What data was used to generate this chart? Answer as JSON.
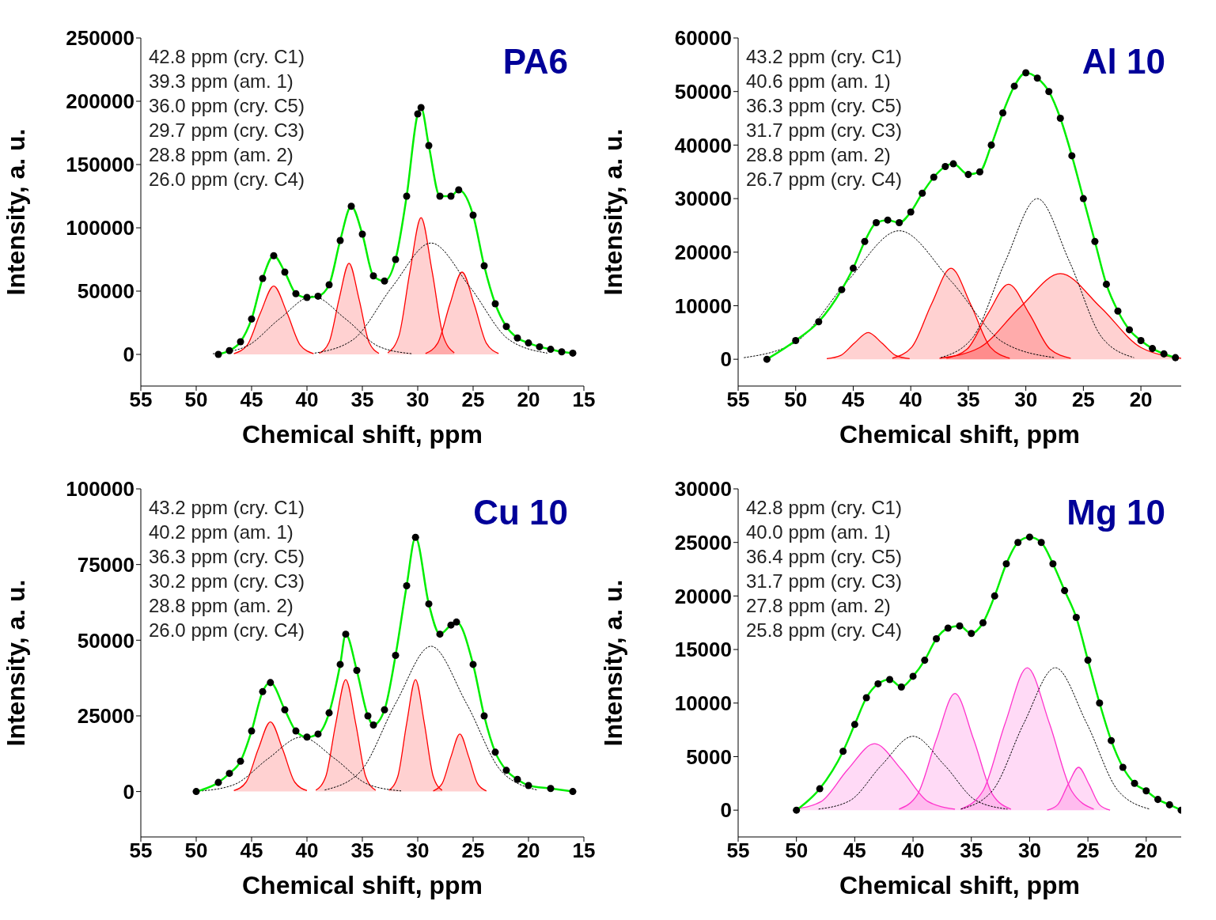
{
  "chart_data": [
    {
      "type": "line",
      "title": "PA6",
      "xlabel": "Chemical shift, ppm",
      "ylabel": "Intensity, a. u.",
      "xlim": [
        55,
        15
      ],
      "xticks": [
        55,
        50,
        45,
        40,
        35,
        30,
        25,
        20,
        15
      ],
      "ylim": [
        -25000,
        250000
      ],
      "yticks": [
        0,
        50000,
        100000,
        150000,
        200000,
        250000
      ],
      "annotations": [
        "42.8 ppm (cry. C1)",
        "39.3 ppm (am. 1)",
        "36.0 ppm (cry. C5)",
        "29.7 ppm (cry. C3)",
        "28.8 ppm (am. 2)",
        "26.0 ppm (cry. C4)"
      ],
      "series": [
        {
          "type": "area",
          "color": "#ff0000",
          "x": [
            46.6,
            45.4,
            44.2,
            43.0,
            41.8,
            40.6,
            39.4
          ],
          "values": [
            600,
            7300,
            32800,
            54000,
            32800,
            7300,
            600
          ]
        },
        {
          "type": "area",
          "color": "#ff0000",
          "x": [
            38.9,
            38.0,
            37.1,
            36.2,
            35.3,
            34.4,
            33.5
          ],
          "values": [
            800,
            9700,
            43700,
            72000,
            43700,
            9700,
            800
          ]
        },
        {
          "type": "area",
          "color": "#ff0000",
          "x": [
            32.7,
            31.7,
            30.7,
            29.7,
            28.7,
            27.7,
            26.7
          ],
          "values": [
            1200,
            14600,
            65600,
            108000,
            65600,
            14600,
            1200
          ]
        },
        {
          "type": "area",
          "color": "#ff0000",
          "x": [
            29.3,
            28.2,
            27.1,
            26.0,
            24.9,
            23.8,
            22.7
          ],
          "values": [
            700,
            8800,
            39500,
            65000,
            39500,
            8800,
            700
          ]
        },
        {
          "type": "line",
          "color": "#000000",
          "line_style": "dashed",
          "x": [
            48.5,
            45.5,
            42.5,
            39.5,
            36.5,
            33.5,
            30.5
          ],
          "values": [
            500,
            6200,
            27900,
            46000,
            27900,
            6200,
            500
          ]
        },
        {
          "type": "line",
          "color": "#000000",
          "line_style": "dashed",
          "x": [
            39.3,
            35.8,
            32.3,
            28.8,
            25.3,
            21.8,
            18.3
          ],
          "values": [
            1000,
            11900,
            53400,
            88000,
            53400,
            11900,
            1000
          ]
        },
        {
          "type": "scatter",
          "color": "#000000",
          "marker": "circle",
          "x": [
            48,
            47,
            46,
            45,
            44,
            43,
            42,
            41,
            40,
            39,
            38,
            37,
            36,
            35,
            34,
            33,
            32,
            31,
            30,
            29.7,
            29,
            28,
            27,
            26.3,
            25,
            24,
            23,
            22,
            21,
            20,
            19,
            18,
            17,
            16
          ],
          "values": [
            0,
            3000,
            10000,
            28000,
            60000,
            78000,
            65000,
            48000,
            45000,
            46000,
            55000,
            90000,
            117000,
            95000,
            62000,
            58000,
            75000,
            125000,
            190000,
            195000,
            165000,
            125000,
            125000,
            130000,
            110000,
            70000,
            40000,
            22000,
            13000,
            9000,
            6000,
            4000,
            2000,
            1000
          ]
        },
        {
          "type": "line",
          "color": "#00ee00",
          "marker": "none",
          "x": [
            48,
            47,
            46,
            45,
            44,
            43,
            42,
            41,
            40,
            39,
            38,
            37,
            36,
            35,
            34,
            33,
            32,
            31,
            30,
            29.7,
            29,
            28,
            27,
            26.3,
            25,
            24,
            23,
            22,
            21,
            20,
            19,
            18,
            17,
            16
          ],
          "values": [
            0,
            3000,
            10000,
            28000,
            60000,
            78000,
            65000,
            48000,
            45000,
            46000,
            55000,
            90000,
            117000,
            95000,
            62000,
            58000,
            75000,
            125000,
            190000,
            195000,
            165000,
            125000,
            125000,
            130000,
            110000,
            70000,
            40000,
            22000,
            13000,
            9000,
            6000,
            4000,
            2000,
            1000
          ]
        }
      ]
    },
    {
      "type": "line",
      "title": "Al 10",
      "xlabel": "Chemical shift, ppm",
      "ylabel": "Intensity, a. u.",
      "xlim": [
        55,
        16.5
      ],
      "xticks": [
        55,
        50,
        45,
        40,
        35,
        30,
        25,
        20
      ],
      "ylim": [
        -5000,
        60000
      ],
      "yticks": [
        0,
        10000,
        20000,
        30000,
        40000,
        50000,
        60000
      ],
      "annotations": [
        "43.2 ppm (cry. C1)",
        "40.6 ppm (am. 1)",
        "36.3 ppm (cry. C5)",
        "31.7 ppm (cry. C3)",
        "28.8 ppm (am. 2)",
        "26.7 ppm (cry. C4)"
      ],
      "series": [
        {
          "type": "area",
          "color": "#ff0000",
          "x": [
            47.3,
            46.1,
            44.9,
            43.7,
            42.5,
            41.3,
            40.1
          ],
          "values": [
            100,
            700,
            3000,
            5000,
            3000,
            700,
            100
          ]
        },
        {
          "type": "area",
          "color": "#ff0000",
          "x": [
            41.6,
            39.9,
            38.2,
            36.5,
            34.8,
            33.1,
            31.4
          ],
          "values": [
            200,
            2300,
            10300,
            17000,
            10300,
            2300,
            200
          ]
        },
        {
          "type": "area",
          "color": "#ff0000",
          "x": [
            36.9,
            35.1,
            33.3,
            31.5,
            29.7,
            27.9,
            26.1
          ],
          "values": [
            200,
            1900,
            8500,
            14000,
            8500,
            1900,
            200
          ]
        },
        {
          "type": "area",
          "color": "#ff0000",
          "x": [
            37.5,
            34,
            30.5,
            27,
            23.5,
            20,
            16.5
          ],
          "values": [
            200,
            2200,
            9700,
            16000,
            9700,
            2200,
            200
          ]
        },
        {
          "type": "line",
          "color": "#000000",
          "line_style": "dashed",
          "x": [
            54.5,
            50,
            45.5,
            41,
            36.5,
            32,
            27.5
          ],
          "values": [
            300,
            3200,
            14600,
            24000,
            14600,
            3200,
            300
          ]
        },
        {
          "type": "line",
          "color": "#000000",
          "line_style": "dashed",
          "x": [
            37.4,
            34.6,
            31.8,
            29,
            26.2,
            23.4,
            20.6
          ],
          "values": [
            300,
            4100,
            18200,
            30000,
            18200,
            4100,
            300
          ]
        },
        {
          "type": "scatter",
          "color": "#000000",
          "marker": "circle",
          "x": [
            52.5,
            50,
            48,
            46,
            45,
            44,
            43,
            42,
            41,
            40,
            39,
            38,
            37,
            36.3,
            35,
            34,
            33,
            32,
            31,
            30,
            29,
            28,
            27,
            26,
            25,
            24,
            23,
            22,
            21,
            20,
            19,
            18,
            17
          ],
          "values": [
            0,
            3500,
            7000,
            13000,
            17000,
            22000,
            25500,
            26000,
            25500,
            27500,
            31000,
            34000,
            36000,
            36500,
            34500,
            35000,
            40000,
            46000,
            51000,
            53500,
            52500,
            50000,
            45000,
            38000,
            30000,
            22000,
            14000,
            9000,
            5500,
            3500,
            2000,
            1000,
            300
          ]
        },
        {
          "type": "line",
          "color": "#00ee00",
          "marker": "none",
          "x": [
            52.5,
            50,
            48,
            46,
            45,
            44,
            43,
            42,
            41,
            40,
            39,
            38,
            37,
            36.3,
            35,
            34,
            33,
            32,
            31,
            30,
            29,
            28,
            27,
            26,
            25,
            24,
            23,
            22,
            21,
            20,
            19,
            18,
            17
          ],
          "values": [
            0,
            3500,
            7000,
            13000,
            17000,
            22000,
            25500,
            26000,
            25500,
            27500,
            31000,
            34000,
            36000,
            36500,
            34500,
            35000,
            40000,
            46000,
            51000,
            53500,
            52500,
            50000,
            45000,
            38000,
            30000,
            22000,
            14000,
            9000,
            5500,
            3500,
            2000,
            1000,
            300
          ]
        }
      ]
    },
    {
      "type": "line",
      "title": "Cu 10",
      "xlabel": "Chemical shift, ppm",
      "ylabel": "Intensity, a. u.",
      "xlim": [
        55,
        15
      ],
      "xticks": [
        55,
        50,
        45,
        40,
        35,
        30,
        25,
        20,
        15
      ],
      "ylim": [
        -15000,
        100000
      ],
      "yticks": [
        0,
        25000,
        50000,
        75000,
        100000
      ],
      "annotations": [
        "43.2 ppm (cry. C1)",
        "40.2 ppm (am. 1)",
        "36.3 ppm (cry. C5)",
        "30.2 ppm (cry. C3)",
        "28.8 ppm (am. 2)",
        "26.0 ppm (cry. C4)"
      ],
      "series": [
        {
          "type": "area",
          "color": "#ff0000",
          "x": [
            46.6,
            45.5,
            44.4,
            43.3,
            42.2,
            41.1,
            40
          ],
          "values": [
            300,
            3100,
            14000,
            23000,
            14000,
            3100,
            300
          ]
        },
        {
          "type": "area",
          "color": "#ff0000",
          "x": [
            39.2,
            38.3,
            37.4,
            36.5,
            35.6,
            34.7,
            33.8
          ],
          "values": [
            400,
            5000,
            22500,
            37000,
            22500,
            5000,
            400
          ]
        },
        {
          "type": "area",
          "color": "#ff0000",
          "x": [
            32.6,
            31.8,
            31,
            30.2,
            29.4,
            28.6,
            27.8
          ],
          "values": [
            400,
            5000,
            22500,
            37000,
            22500,
            5000,
            400
          ]
        },
        {
          "type": "area",
          "color": "#ff0000",
          "x": [
            28.6,
            27.8,
            27,
            26.2,
            25.4,
            24.6,
            23.8
          ],
          "values": [
            200,
            2600,
            11500,
            19000,
            11500,
            2600,
            200
          ]
        },
        {
          "type": "line",
          "color": "#000000",
          "line_style": "dashed",
          "x": [
            49.5,
            46.5,
            43.5,
            40.5,
            37.5,
            34.5,
            31.5
          ],
          "values": [
            200,
            2400,
            10900,
            18000,
            10900,
            2400,
            200
          ]
        },
        {
          "type": "line",
          "color": "#000000",
          "line_style": "dashed",
          "x": [
            38.4,
            35.2,
            32,
            28.8,
            25.6,
            22.4,
            19.2
          ],
          "values": [
            500,
            6500,
            29100,
            48000,
            29100,
            6500,
            500
          ]
        },
        {
          "type": "scatter",
          "color": "#000000",
          "marker": "circle",
          "x": [
            50,
            48,
            47,
            46,
            45,
            44,
            43.3,
            42,
            41,
            40,
            39,
            38,
            37,
            36.5,
            35.5,
            34.5,
            34,
            33,
            32,
            31,
            30.2,
            29,
            28,
            27,
            26.5,
            25,
            24,
            23,
            22,
            21,
            20,
            18,
            16
          ],
          "values": [
            0,
            3000,
            6000,
            10000,
            20000,
            33000,
            36000,
            27000,
            20000,
            18000,
            19000,
            26000,
            42000,
            52000,
            40000,
            25000,
            22000,
            27000,
            45000,
            68000,
            84000,
            62000,
            52000,
            55000,
            56000,
            42000,
            25000,
            13000,
            7000,
            4000,
            2000,
            1000,
            0
          ]
        },
        {
          "type": "line",
          "color": "#00ee00",
          "marker": "none",
          "x": [
            50,
            48,
            47,
            46,
            45,
            44,
            43.3,
            42,
            41,
            40,
            39,
            38,
            37,
            36.5,
            35.5,
            34.5,
            34,
            33,
            32,
            31,
            30.2,
            29,
            28,
            27,
            26.5,
            25,
            24,
            23,
            22,
            21,
            20,
            18,
            16
          ],
          "values": [
            0,
            3000,
            6000,
            10000,
            20000,
            33000,
            36000,
            27000,
            20000,
            18000,
            19000,
            26000,
            42000,
            52000,
            40000,
            25000,
            22000,
            27000,
            45000,
            68000,
            84000,
            62000,
            52000,
            55000,
            56000,
            42000,
            25000,
            13000,
            7000,
            4000,
            2000,
            1000,
            0
          ]
        }
      ]
    },
    {
      "type": "line",
      "title": "Mg 10",
      "xlabel": "Chemical shift, ppm",
      "ylabel": "Intensity, a. u.",
      "xlim": [
        55,
        17
      ],
      "xticks": [
        55,
        50,
        45,
        40,
        35,
        30,
        25,
        20
      ],
      "ylim": [
        -2500,
        30000
      ],
      "yticks": [
        0,
        5000,
        10000,
        15000,
        20000,
        25000,
        30000
      ],
      "annotations": [
        "42.8 ppm (cry. C1)",
        "40.0 ppm (am. 1)",
        "36.4 ppm (cry. C5)",
        "31.7 ppm (cry. C3)",
        "27.8 ppm (am. 2)",
        "25.8 ppm (cry. C4)"
      ],
      "series": [
        {
          "type": "area",
          "color": "#ff33cc",
          "x": [
            50.2,
            47.9,
            45.6,
            43.3,
            41,
            38.7,
            36.4
          ],
          "values": [
            100,
            800,
            3800,
            6200,
            3800,
            800,
            100
          ]
        },
        {
          "type": "area",
          "color": "#ff33cc",
          "x": [
            41.2,
            39.6,
            38,
            36.4,
            34.8,
            33.2,
            31.6
          ],
          "values": [
            100,
            1500,
            6600,
            10900,
            6600,
            1500,
            100
          ]
        },
        {
          "type": "area",
          "color": "#ff33cc",
          "x": [
            35.9,
            34,
            32.1,
            30.2,
            28.3,
            26.4,
            24.5
          ],
          "values": [
            100,
            1800,
            8100,
            13300,
            8100,
            1800,
            100
          ]
        },
        {
          "type": "area",
          "color": "#ff33cc",
          "x": [
            28.5,
            27.6,
            26.7,
            25.8,
            24.9,
            24,
            23.1
          ],
          "values": [
            0,
            500,
            2400,
            4000,
            2400,
            500,
            0
          ]
        },
        {
          "type": "line",
          "color": "#000000",
          "line_style": "dashed",
          "x": [
            48.1,
            45.4,
            42.7,
            40,
            37.3,
            34.6,
            31.9
          ],
          "values": [
            100,
            900,
            4200,
            6900,
            4200,
            900,
            100
          ]
        },
        {
          "type": "line",
          "color": "#000000",
          "line_style": "dashed",
          "x": [
            35.9,
            33.2,
            30.5,
            27.8,
            25.1,
            22.4,
            19.7
          ],
          "values": [
            100,
            1800,
            8100,
            13300,
            8100,
            1800,
            100
          ]
        },
        {
          "type": "scatter",
          "color": "#000000",
          "marker": "circle",
          "x": [
            50,
            48,
            46,
            45,
            44,
            43,
            42,
            41,
            40,
            39,
            38,
            37,
            36,
            35,
            34,
            33,
            32,
            31,
            30,
            29,
            28,
            27,
            26,
            25,
            24,
            23,
            22,
            21,
            20,
            19,
            18,
            17
          ],
          "values": [
            0,
            2000,
            5500,
            8000,
            10500,
            11800,
            12200,
            11500,
            12500,
            14000,
            16000,
            17000,
            17200,
            16500,
            17500,
            20000,
            23000,
            25000,
            25500,
            25000,
            23000,
            20500,
            18000,
            14000,
            10000,
            6500,
            4000,
            2500,
            1800,
            1000,
            500,
            0
          ]
        },
        {
          "type": "line",
          "color": "#00ee00",
          "marker": "none",
          "x": [
            50,
            48,
            46,
            45,
            44,
            43,
            42,
            41,
            40,
            39,
            38,
            37,
            36,
            35,
            34,
            33,
            32,
            31,
            30,
            29,
            28,
            27,
            26,
            25,
            24,
            23,
            22,
            21,
            20,
            19,
            18,
            17
          ],
          "values": [
            0,
            2000,
            5500,
            8000,
            10500,
            11800,
            12200,
            11500,
            12500,
            14000,
            16000,
            17000,
            17200,
            16500,
            17500,
            20000,
            23000,
            25000,
            25500,
            25000,
            23000,
            20500,
            18000,
            14000,
            10000,
            6500,
            4000,
            2500,
            1800,
            1000,
            500,
            0
          ]
        }
      ]
    }
  ]
}
